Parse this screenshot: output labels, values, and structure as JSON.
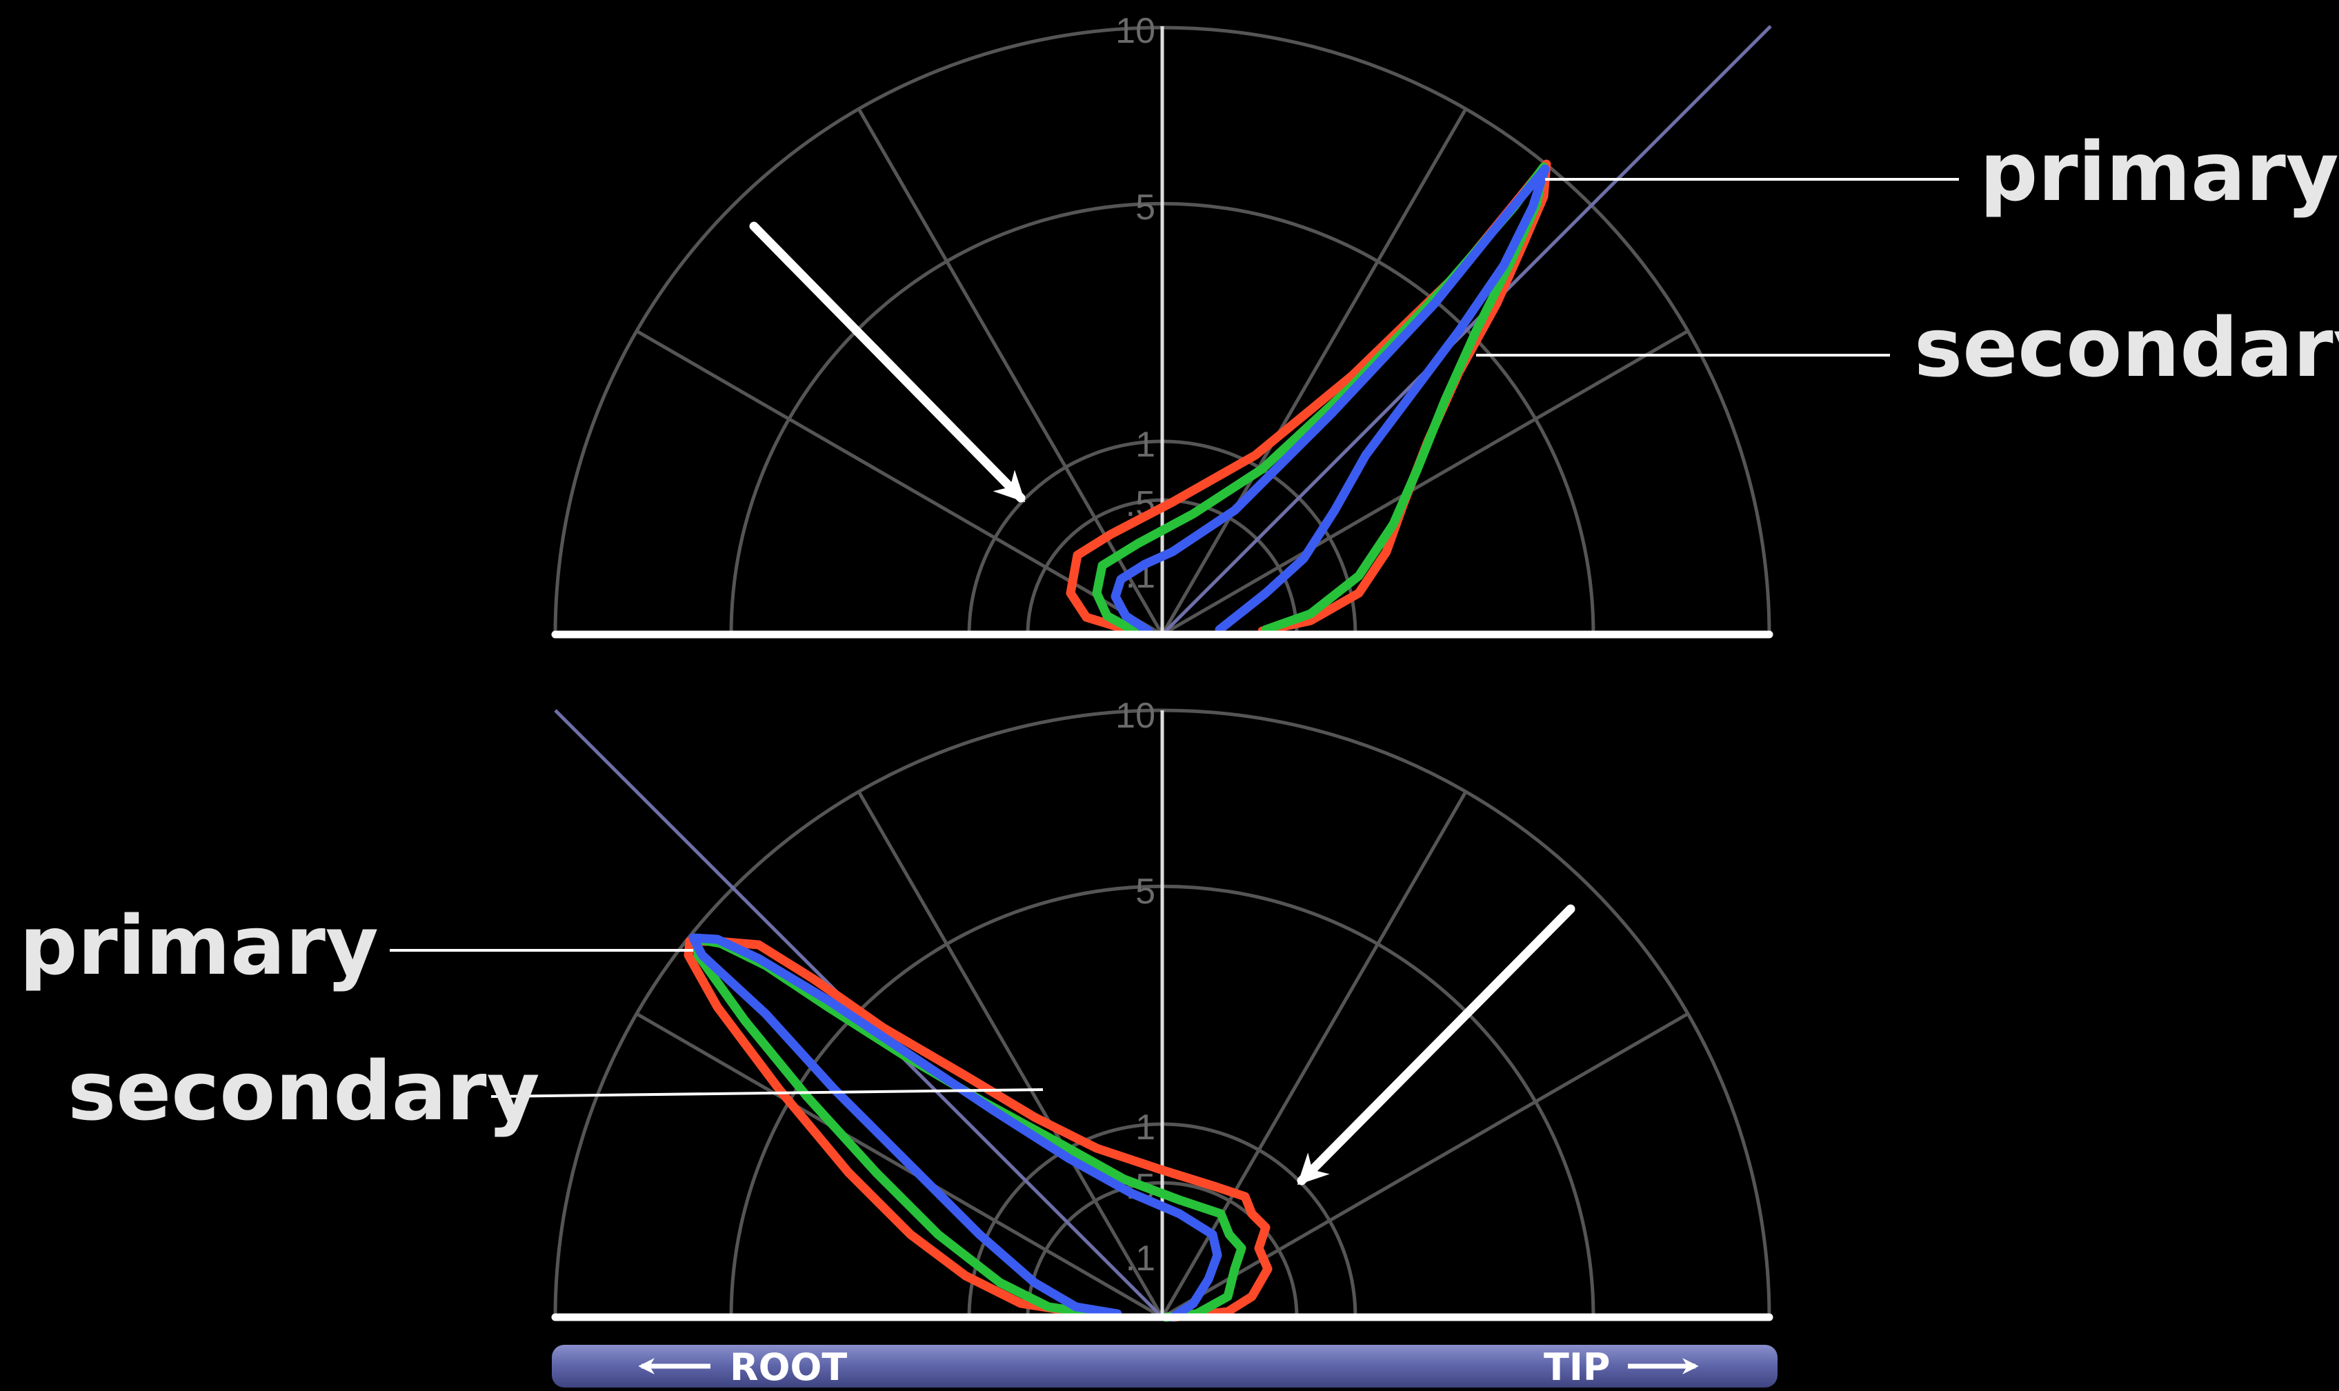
{
  "ticks": [
    "10",
    "5",
    "1",
    ".5",
    ".1"
  ],
  "top_panel": {
    "primary_label": "primary",
    "secondary_label": "secondary"
  },
  "bottom_panel": {
    "primary_label": "primary",
    "secondary_label": "secondary"
  },
  "bar": {
    "root_label": "ROOT",
    "tip_label": "TIP"
  },
  "colors": {
    "red": "#ff4a2a",
    "green": "#27c23a",
    "blue": "#3b5cf0",
    "bar": "#5d64a8"
  }
}
